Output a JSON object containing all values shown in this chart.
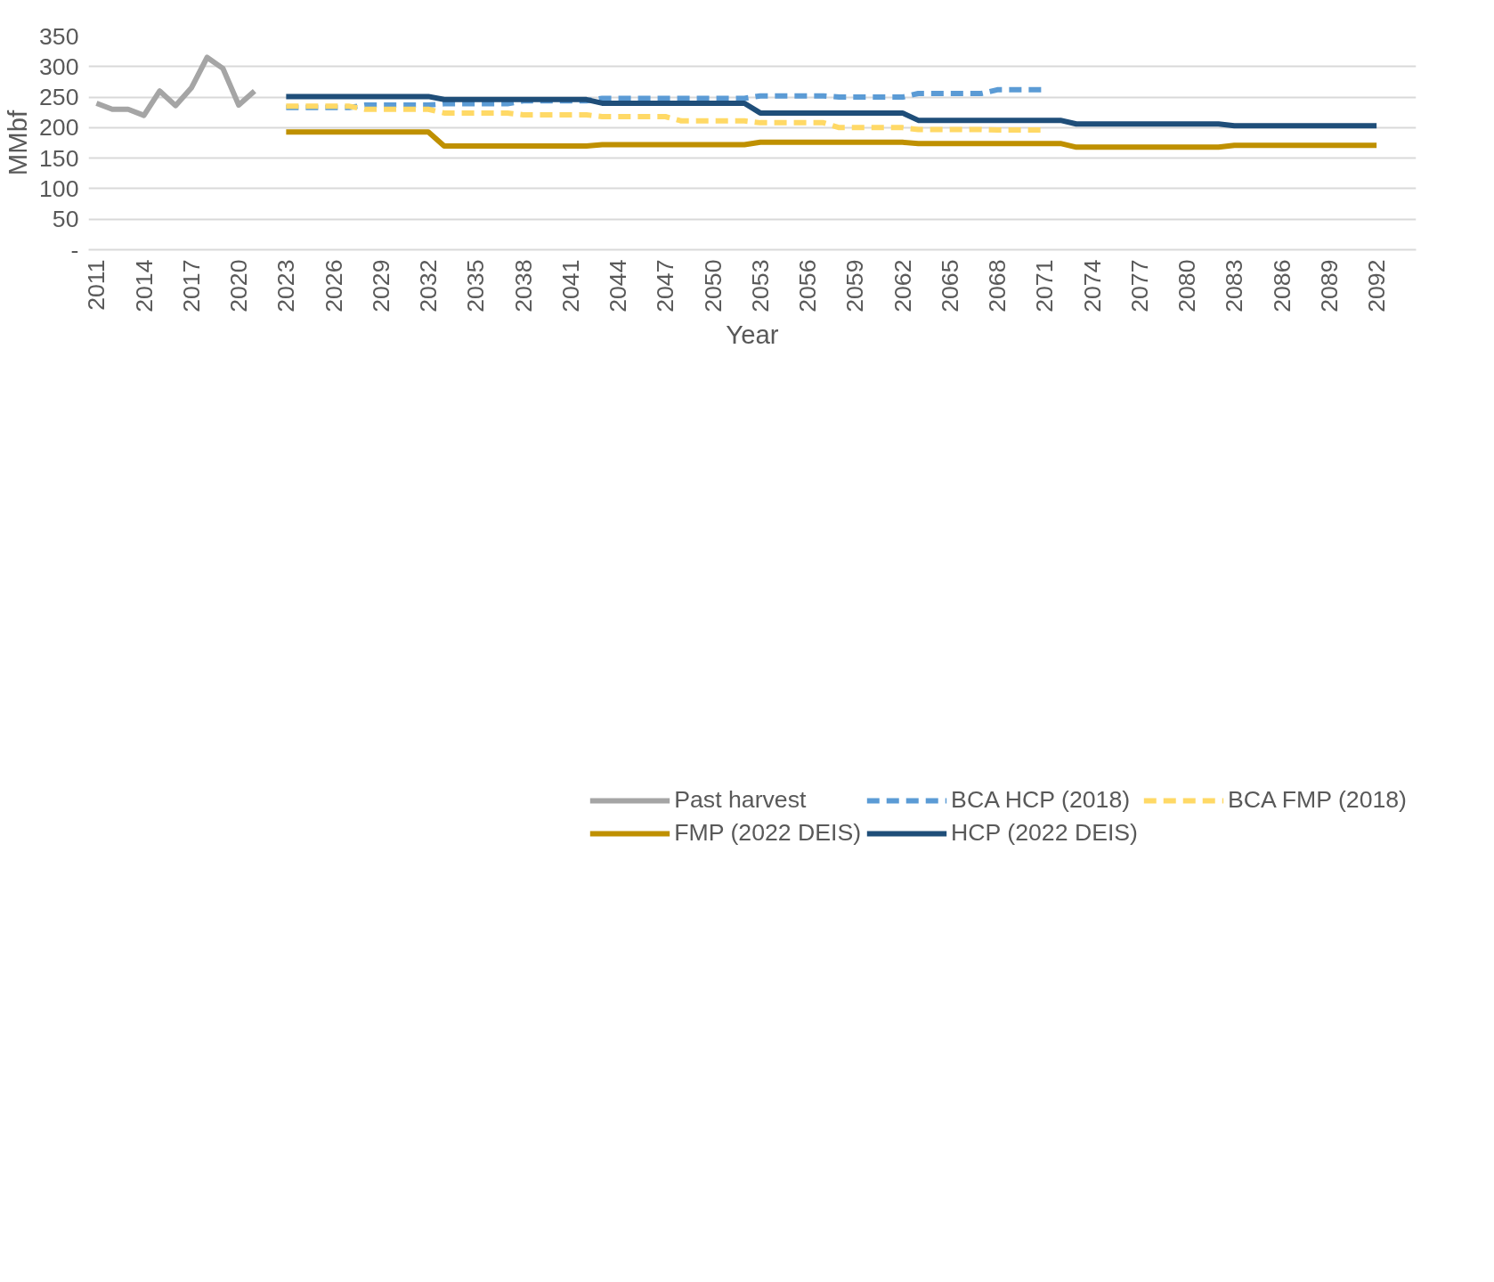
{
  "chart_data": {
    "type": "line",
    "xlabel": "Year",
    "ylabel": "MMbf",
    "xlim": [
      2010.5,
      2094.5
    ],
    "xticks": [
      2011,
      2014,
      2017,
      2020,
      2023,
      2026,
      2029,
      2032,
      2035,
      2038,
      2041,
      2044,
      2047,
      2050,
      2053,
      2056,
      2059,
      2062,
      2065,
      2068,
      2071,
      2074,
      2077,
      2080,
      2083,
      2086,
      2089,
      2092
    ],
    "ylim": [
      0,
      350
    ],
    "yticks": [
      {
        "value": 0,
        "label": "-"
      },
      50,
      100,
      150,
      200,
      250,
      300,
      350
    ],
    "grid": "y",
    "legend": "bottom",
    "marker": "none",
    "series": [
      {
        "name": "Past harvest",
        "color": "#a5a5a5",
        "line_style": "solid",
        "x": [
          2011,
          2012,
          2013,
          2014,
          2015,
          2016,
          2017,
          2018,
          2019,
          2020,
          2021
        ],
        "values": [
          240,
          230,
          230,
          220,
          260,
          236,
          265,
          315,
          297,
          237,
          260
        ]
      },
      {
        "name": "BCA HCP (2018)",
        "color": "#5b9bd5",
        "line_style": "dashed",
        "x": [
          2023,
          2027,
          2028,
          2032,
          2033,
          2037,
          2038,
          2042,
          2043,
          2052,
          2053,
          2057,
          2058,
          2062,
          2063,
          2067,
          2068,
          2071
        ],
        "values": [
          233,
          233,
          237,
          237,
          239,
          239,
          244,
          244,
          248,
          248,
          252,
          252,
          250,
          250,
          256,
          256,
          262,
          262
        ]
      },
      {
        "name": "BCA FMP (2018)",
        "color": "#ffd966",
        "line_style": "dashed",
        "x": [
          2023,
          2027,
          2028,
          2032,
          2033,
          2037,
          2038,
          2042,
          2043,
          2047,
          2048,
          2052,
          2053,
          2057,
          2058,
          2062,
          2063,
          2067,
          2068,
          2071
        ],
        "values": [
          235,
          235,
          230,
          230,
          224,
          224,
          221,
          221,
          218,
          218,
          211,
          211,
          208,
          208,
          200,
          200,
          197,
          197,
          196,
          196
        ]
      },
      {
        "name": "FMP (2022 DEIS)",
        "color": "#bf9000",
        "line_style": "solid",
        "x": [
          2023,
          2032,
          2033,
          2042,
          2043,
          2052,
          2053,
          2062,
          2063,
          2072,
          2073,
          2082,
          2083,
          2092
        ],
        "values": [
          193,
          193,
          170,
          170,
          172,
          172,
          176,
          176,
          174,
          174,
          168,
          168,
          171,
          171
        ]
      },
      {
        "name": "HCP (2022 DEIS)",
        "color": "#1f4e79",
        "line_style": "solid",
        "x": [
          2023,
          2032,
          2033,
          2042,
          2043,
          2052,
          2053,
          2062,
          2063,
          2072,
          2073,
          2082,
          2083,
          2092
        ],
        "values": [
          251,
          251,
          246,
          246,
          240,
          240,
          224,
          224,
          212,
          212,
          206,
          206,
          203,
          203
        ]
      }
    ]
  }
}
